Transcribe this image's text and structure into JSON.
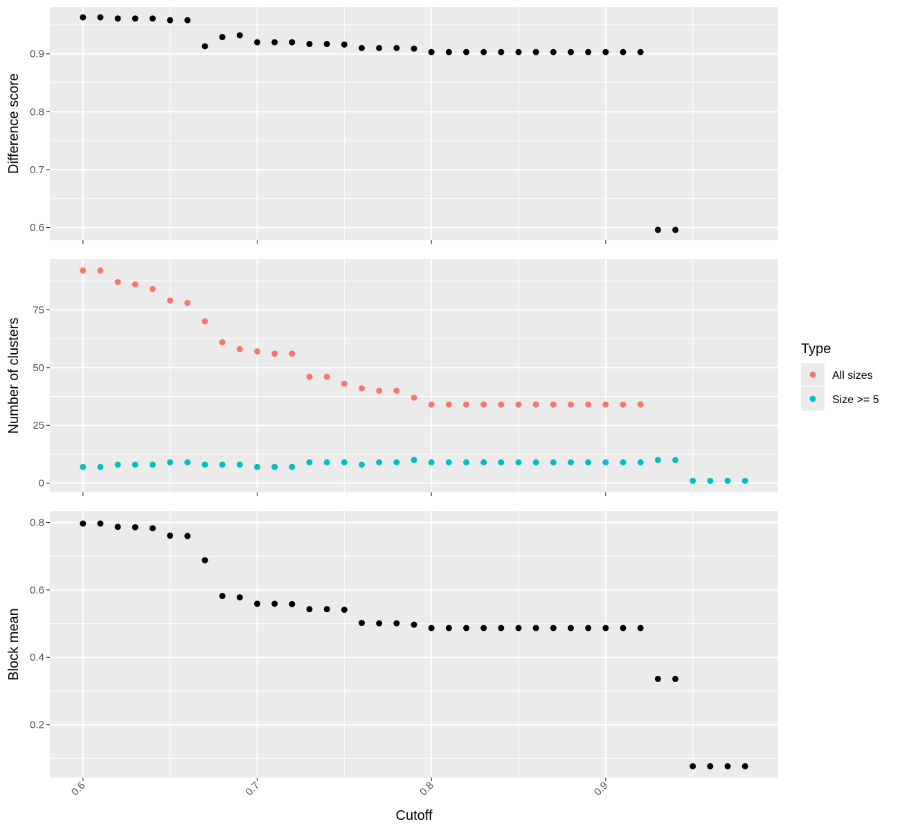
{
  "chart_data": {
    "type": "scatter",
    "xlabel": "Cutoff",
    "x_ticks": [
      0.6,
      0.7,
      0.8,
      0.9
    ],
    "xlim": [
      0.581,
      0.999
    ],
    "legend": {
      "title": "Type",
      "placement": "right",
      "entries": [
        {
          "label": "All sizes",
          "color": "#F8766D"
        },
        {
          "label": "Size >= 5",
          "color": "#00BFC4"
        }
      ]
    },
    "panels": [
      {
        "ylabel": "Difference score",
        "ylim": [
          0.578,
          0.981
        ],
        "y_ticks": [
          0.6,
          0.7,
          0.8,
          0.9
        ],
        "series": [
          {
            "color": "#000000",
            "x": [
              0.6,
              0.61,
              0.62,
              0.63,
              0.64,
              0.65,
              0.66,
              0.67,
              0.68,
              0.69,
              0.7,
              0.71,
              0.72,
              0.73,
              0.74,
              0.75,
              0.76,
              0.77,
              0.78,
              0.79,
              0.8,
              0.81,
              0.82,
              0.83,
              0.84,
              0.85,
              0.86,
              0.87,
              0.88,
              0.89,
              0.9,
              0.91,
              0.92,
              0.93,
              0.94
            ],
            "y": [
              0.963,
              0.963,
              0.961,
              0.961,
              0.961,
              0.958,
              0.958,
              0.913,
              0.929,
              0.932,
              0.92,
              0.92,
              0.92,
              0.917,
              0.917,
              0.916,
              0.91,
              0.91,
              0.91,
              0.909,
              0.903,
              0.903,
              0.903,
              0.903,
              0.903,
              0.903,
              0.903,
              0.903,
              0.903,
              0.903,
              0.903,
              0.903,
              0.903,
              0.596,
              0.596
            ]
          }
        ]
      },
      {
        "ylabel": "Number of clusters",
        "ylim": [
          -4,
          97
        ],
        "y_ticks": [
          0,
          25,
          50,
          75
        ],
        "series": [
          {
            "name": "All sizes",
            "color": "#F8766D",
            "x": [
              0.6,
              0.61,
              0.62,
              0.63,
              0.64,
              0.65,
              0.66,
              0.67,
              0.68,
              0.69,
              0.7,
              0.71,
              0.72,
              0.73,
              0.74,
              0.75,
              0.76,
              0.77,
              0.78,
              0.79,
              0.8,
              0.81,
              0.82,
              0.83,
              0.84,
              0.85,
              0.86,
              0.87,
              0.88,
              0.89,
              0.9,
              0.91,
              0.92
            ],
            "y": [
              92,
              92,
              87,
              86,
              84,
              79,
              78,
              70,
              61,
              58,
              57,
              56,
              56,
              46,
              46,
              43,
              41,
              40,
              40,
              37,
              34,
              34,
              34,
              34,
              34,
              34,
              34,
              34,
              34,
              34,
              34,
              34,
              34
            ]
          },
          {
            "name": "Size >= 5",
            "color": "#00BFC4",
            "x": [
              0.6,
              0.61,
              0.62,
              0.63,
              0.64,
              0.65,
              0.66,
              0.67,
              0.68,
              0.69,
              0.7,
              0.71,
              0.72,
              0.73,
              0.74,
              0.75,
              0.76,
              0.77,
              0.78,
              0.79,
              0.8,
              0.81,
              0.82,
              0.83,
              0.84,
              0.85,
              0.86,
              0.87,
              0.88,
              0.89,
              0.9,
              0.91,
              0.92,
              0.93,
              0.94,
              0.95,
              0.96,
              0.97,
              0.98
            ],
            "y": [
              7,
              7,
              8,
              8,
              8,
              9,
              9,
              8,
              8,
              8,
              7,
              7,
              7,
              9,
              9,
              9,
              8,
              9,
              9,
              10,
              9,
              9,
              9,
              9,
              9,
              9,
              9,
              9,
              9,
              9,
              9,
              9,
              9,
              10,
              10,
              1,
              1,
              1,
              1
            ]
          }
        ]
      },
      {
        "ylabel": "Block mean",
        "ylim": [
          0.043,
          0.834
        ],
        "y_ticks": [
          0.2,
          0.4,
          0.6,
          0.8
        ],
        "series": [
          {
            "color": "#000000",
            "x": [
              0.6,
              0.61,
              0.62,
              0.63,
              0.64,
              0.65,
              0.66,
              0.67,
              0.68,
              0.69,
              0.7,
              0.71,
              0.72,
              0.73,
              0.74,
              0.75,
              0.76,
              0.77,
              0.78,
              0.79,
              0.8,
              0.81,
              0.82,
              0.83,
              0.84,
              0.85,
              0.86,
              0.87,
              0.88,
              0.89,
              0.9,
              0.91,
              0.92,
              0.93,
              0.94,
              0.95,
              0.96,
              0.97,
              0.98
            ],
            "y": [
              0.797,
              0.797,
              0.787,
              0.786,
              0.783,
              0.761,
              0.76,
              0.688,
              0.582,
              0.578,
              0.559,
              0.559,
              0.558,
              0.543,
              0.543,
              0.541,
              0.502,
              0.501,
              0.501,
              0.497,
              0.487,
              0.487,
              0.487,
              0.487,
              0.487,
              0.487,
              0.487,
              0.487,
              0.487,
              0.487,
              0.487,
              0.487,
              0.487,
              0.336,
              0.336,
              0.077,
              0.077,
              0.077,
              0.077
            ]
          }
        ]
      }
    ]
  }
}
